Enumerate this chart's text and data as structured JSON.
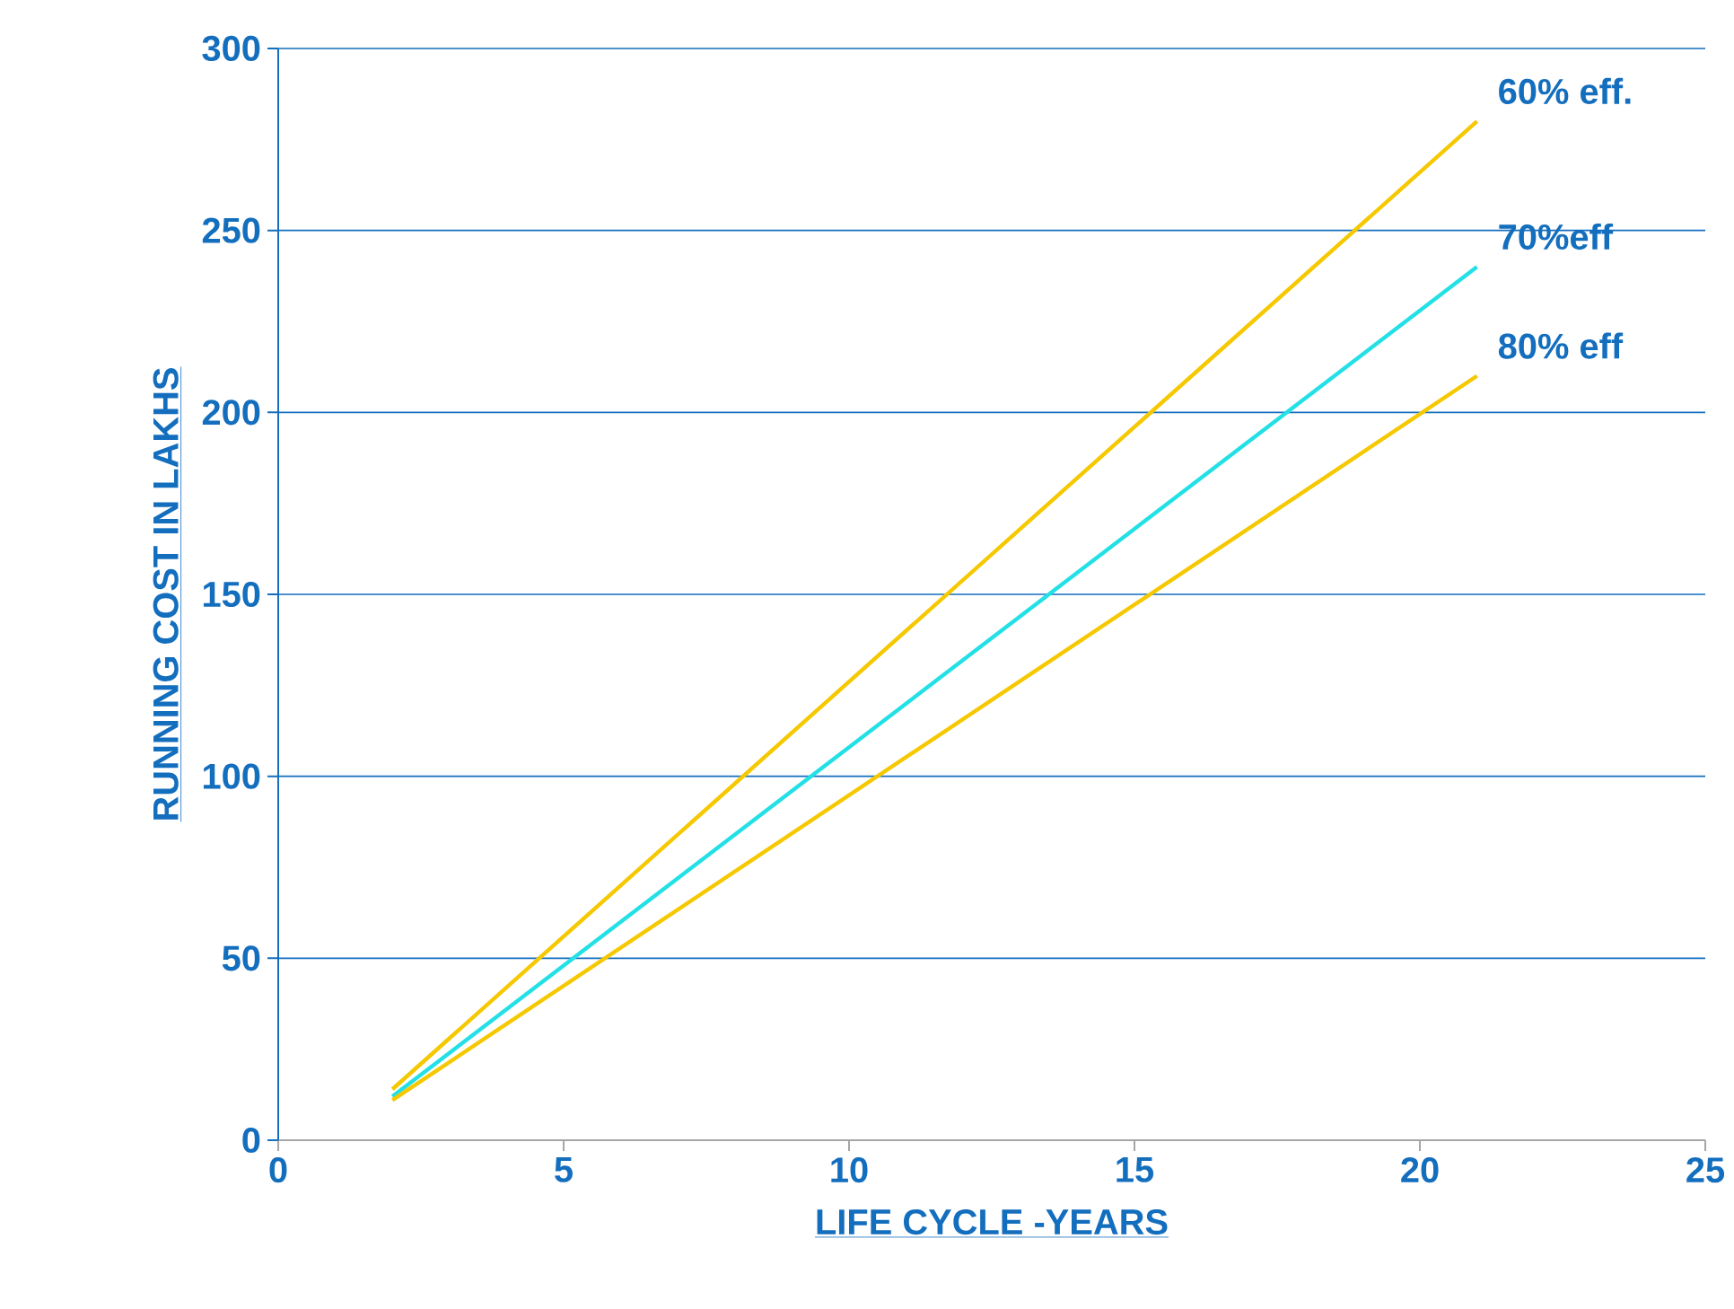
{
  "chart_data": {
    "type": "line",
    "xlabel": "LIFE CYCLE -YEARS",
    "ylabel": "RUNNING COST IN LAKHS",
    "xlim": [
      0,
      25
    ],
    "ylim": [
      0,
      300
    ],
    "xticks": [
      0,
      5,
      10,
      15,
      20,
      25
    ],
    "yticks": [
      0,
      50,
      100,
      150,
      200,
      250,
      300
    ],
    "grid": "y",
    "line_style": "solid",
    "x": [
      2,
      21
    ],
    "series": [
      {
        "name": "60% eff.",
        "color": "#f5c800",
        "values": [
          14,
          280
        ]
      },
      {
        "name": "70%eff",
        "color": "#22e0e6",
        "values": [
          12,
          240
        ]
      },
      {
        "name": "80% eff",
        "color": "#f5c800",
        "values": [
          11,
          210
        ]
      }
    ]
  }
}
